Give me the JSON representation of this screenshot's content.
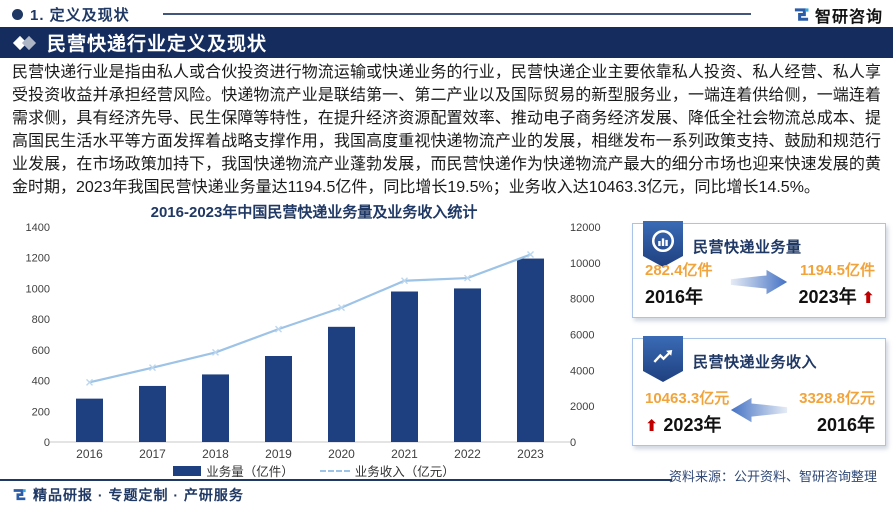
{
  "header": {
    "section_label": "1. 定义及现状",
    "logo_text": "智研咨询"
  },
  "banner": {
    "title": "民营快递行业定义及现状"
  },
  "intro": {
    "text": "民营快递行业是指由私人或合伙投资进行物流运输或快递业务的行业，民营快递企业主要依靠私人投资、私人经营、私人享受投资收益并承担经营风险。快递物流产业是联结第一、第二产业以及国际贸易的新型服务业，一端连着供给侧，一端连着需求侧，具有经济先导、民生保障等特性，在提升经济资源配置效率、推动电子商务经济发展、降低全社会物流总成本、提高国民生活水平等方面发挥着战略支撑作用，我国高度重视快递物流产业的发展，相继发布一系列政策支持、鼓励和规范行业发展，在市场政策加持下，我国快递物流产业蓬勃发展，而民营快递作为快递物流产最大的细分市场也迎来快速发展的黄金时期，2023年我国民营快递业务量达1194.5亿件，同比增长19.5%；业务收入达10463.3亿元，同比增长14.5%。"
  },
  "chart_data": {
    "type": "bar",
    "title": "2016-2023年中国民营快递业务量及业务收入统计",
    "categories": [
      "2016",
      "2017",
      "2018",
      "2019",
      "2020",
      "2021",
      "2022",
      "2023"
    ],
    "series": [
      {
        "name": "业务量（亿件）",
        "type": "bar",
        "axis": "left",
        "values": [
          282.4,
          365,
          440,
          560,
          750,
          980,
          1000,
          1194.5
        ]
      },
      {
        "name": "业务收入（亿元）",
        "type": "line",
        "axis": "right",
        "values": [
          3328.8,
          4150,
          5000,
          6300,
          7500,
          9000,
          9150,
          10463.3
        ]
      }
    ],
    "left_ylim": [
      0,
      1400
    ],
    "left_ticks": [
      0,
      200,
      400,
      600,
      800,
      1000,
      1200,
      1400
    ],
    "right_ylim": [
      0,
      12000
    ],
    "right_ticks": [
      0,
      2000,
      4000,
      6000,
      8000,
      10000,
      12000
    ],
    "grid": false,
    "legend_position": "bottom"
  },
  "cards": [
    {
      "title": "民营快递业务量",
      "icon": "bar-chart-badge-icon",
      "from": {
        "value": "282.4亿件",
        "year": "2016年"
      },
      "to": {
        "value": "1194.5亿件",
        "year": "2023年"
      },
      "arrow_direction": "right"
    },
    {
      "title": "民营快递业务收入",
      "icon": "line-chart-badge-icon",
      "from": {
        "value": "3328.8亿元",
        "year": "2016年"
      },
      "to": {
        "value": "10463.3亿元",
        "year": "2023年"
      },
      "arrow_direction": "left"
    }
  ],
  "source_note": "资料来源：公开资料、智研咨询整理",
  "footer": {
    "text": "精品研报 · 专题定制 · 产研服务"
  },
  "colors": {
    "banner_bg": "#152C5E",
    "bar": "#1F4080",
    "line": "#9DC3E6",
    "title_navy": "#1F3864",
    "orange": "#F2A43C",
    "red": "#C00000"
  }
}
